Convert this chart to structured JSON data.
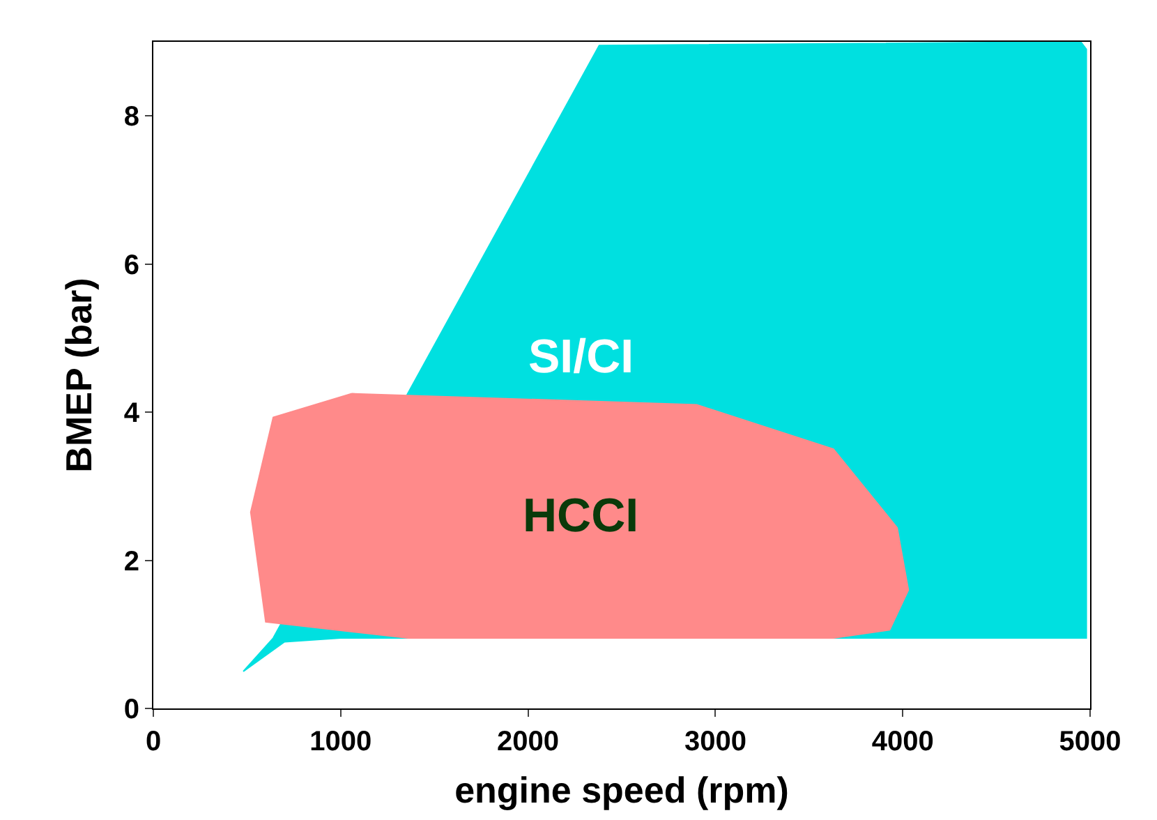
{
  "chart_data": {
    "type": "area",
    "xlabel": "engine speed (rpm)",
    "ylabel": "BMEP (bar)",
    "xlim": [
      0,
      5000
    ],
    "ylim": [
      0,
      9
    ],
    "xticks": [
      0,
      1000,
      2000,
      3000,
      4000,
      5000
    ],
    "yticks": [
      0,
      2,
      4,
      6,
      8
    ],
    "legend": false,
    "series": [
      {
        "name": "SI/CI",
        "color": "#00e0e0",
        "x": [
          480,
          640,
          2380,
          4950,
          4980,
          4980,
          1000,
          700,
          480
        ],
        "values": [
          0.5,
          0.95,
          8.95,
          9,
          8.9,
          0.95,
          0.95,
          0.9,
          0.5
        ]
      },
      {
        "name": "HCCI",
        "color": "#ff8a8a",
        "x": [
          1060,
          2900,
          3630,
          3970,
          4030,
          3930,
          3630,
          1360,
          600,
          520,
          640,
          1060
        ],
        "values": [
          4.25,
          4.1,
          3.5,
          2.44,
          1.6,
          1.06,
          0.95,
          0.95,
          1.17,
          2.65,
          3.93,
          4.25
        ]
      }
    ]
  }
}
